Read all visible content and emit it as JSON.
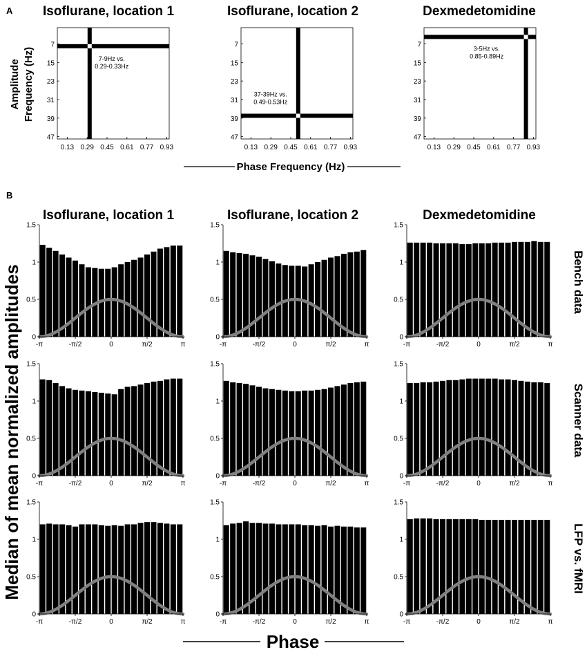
{
  "panel_a": {
    "letter": "A",
    "ylabel_line1": "Amplitude",
    "ylabel_line2": "Frequency (Hz)",
    "xlabel": "Phase Frequency (Hz)"
  },
  "panel_b": {
    "letter": "B",
    "ylabel": "Median of mean normalized amplitudes",
    "xlabel": "Phase",
    "row_labels": [
      "Bench data",
      "Scanner data",
      "LFP vs. fMRI"
    ]
  },
  "chart_data": [
    {
      "type": "heatmap",
      "title": "Isoflurane, location 1",
      "xticks": [
        "0.13",
        "0.29",
        "0.45",
        "0.61",
        "0.77",
        "0.93"
      ],
      "yticks": [
        "7",
        "15",
        "23",
        "31",
        "39",
        "47"
      ],
      "xlim": [
        0.05,
        0.95
      ],
      "ylim": [
        0,
        48
      ],
      "peak_phase_hz": 0.31,
      "peak_amp_hz": 8,
      "annotation_line1": "7-9Hz vs.",
      "annotation_line2": "0.29-0.33Hz"
    },
    {
      "type": "heatmap",
      "title": "Isoflurane, location 2",
      "xticks": [
        "0.13",
        "0.29",
        "0.45",
        "0.61",
        "0.77",
        "0.93"
      ],
      "yticks": [
        "7",
        "15",
        "23",
        "31",
        "39",
        "47"
      ],
      "xlim": [
        0.05,
        0.95
      ],
      "ylim": [
        0,
        48
      ],
      "peak_phase_hz": 0.51,
      "peak_amp_hz": 38,
      "annotation_line1": "37-39Hz vs.",
      "annotation_line2": "0.49-0.53Hz"
    },
    {
      "type": "heatmap",
      "title": "Dexmedetomidine",
      "xticks": [
        "0.13",
        "0.29",
        "0.45",
        "0.61",
        "0.77",
        "0.93"
      ],
      "yticks": [
        "7",
        "15",
        "23",
        "31",
        "39",
        "47"
      ],
      "xlim": [
        0.05,
        0.95
      ],
      "ylim": [
        0,
        48
      ],
      "peak_phase_hz": 0.87,
      "peak_amp_hz": 4,
      "annotation_line1": "3-5Hz vs.",
      "annotation_line2": "0.85-0.89Hz"
    },
    {
      "type": "bar",
      "title": "Isoflurane, location 1",
      "row": "Bench data",
      "ylim": [
        0,
        1.5
      ],
      "yticks": [
        "0",
        "0.5",
        "1",
        "1.5"
      ],
      "xticks": [
        "-π",
        "-π/2",
        "0",
        "π/2",
        "π"
      ],
      "values": [
        1.23,
        1.19,
        1.15,
        1.1,
        1.06,
        1.02,
        0.97,
        0.93,
        0.92,
        0.91,
        0.91,
        0.93,
        0.97,
        1.0,
        1.03,
        1.06,
        1.1,
        1.14,
        1.18,
        1.2,
        1.22,
        1.22
      ],
      "overlay_peak": 0.5
    },
    {
      "type": "bar",
      "title": "Isoflurane, location 2",
      "row": "Bench data",
      "ylim": [
        0,
        1.5
      ],
      "yticks": [
        "0",
        "0.5",
        "1",
        "1.5"
      ],
      "xticks": [
        "-π",
        "-π/2",
        "0",
        "π/2",
        "π"
      ],
      "values": [
        1.15,
        1.13,
        1.12,
        1.11,
        1.09,
        1.07,
        1.04,
        1.01,
        0.98,
        0.96,
        0.95,
        0.95,
        0.94,
        0.97,
        1.0,
        1.03,
        1.06,
        1.08,
        1.11,
        1.13,
        1.14,
        1.16
      ],
      "overlay_peak": 0.5
    },
    {
      "type": "bar",
      "title": "Dexmedetomidine",
      "row": "Bench data",
      "ylim": [
        0,
        1.5
      ],
      "yticks": [
        "0",
        "0.5",
        "1",
        "1.5"
      ],
      "xticks": [
        "-π",
        "-π/2",
        "0",
        "π/2",
        "π"
      ],
      "values": [
        1.26,
        1.26,
        1.26,
        1.26,
        1.25,
        1.25,
        1.25,
        1.25,
        1.24,
        1.24,
        1.25,
        1.25,
        1.25,
        1.26,
        1.26,
        1.26,
        1.27,
        1.27,
        1.27,
        1.28,
        1.27,
        1.27
      ],
      "overlay_peak": 0.5
    },
    {
      "type": "bar",
      "title": "Isoflurane, location 1",
      "row": "Scanner data",
      "ylim": [
        0,
        1.5
      ],
      "yticks": [
        "0",
        "0.5",
        "1",
        "1.5"
      ],
      "xticks": [
        "-π",
        "-π/2",
        "0",
        "π/2",
        "π"
      ],
      "values": [
        1.29,
        1.28,
        1.24,
        1.2,
        1.17,
        1.15,
        1.14,
        1.13,
        1.12,
        1.11,
        1.1,
        1.09,
        1.16,
        1.19,
        1.2,
        1.22,
        1.24,
        1.26,
        1.27,
        1.29,
        1.3,
        1.3
      ],
      "overlay_peak": 0.5
    },
    {
      "type": "bar",
      "title": "Isoflurane, location 2",
      "row": "Scanner data",
      "ylim": [
        0,
        1.5
      ],
      "yticks": [
        "0",
        "0.5",
        "1",
        "1.5"
      ],
      "xticks": [
        "-π",
        "-π/2",
        "0",
        "π/2",
        "π"
      ],
      "values": [
        1.27,
        1.25,
        1.24,
        1.23,
        1.21,
        1.19,
        1.17,
        1.16,
        1.15,
        1.14,
        1.13,
        1.13,
        1.14,
        1.14,
        1.15,
        1.16,
        1.18,
        1.2,
        1.22,
        1.24,
        1.25,
        1.26
      ],
      "overlay_peak": 0.5
    },
    {
      "type": "bar",
      "title": "Dexmedetomidine",
      "row": "Scanner data",
      "ylim": [
        0,
        1.5
      ],
      "yticks": [
        "0",
        "0.5",
        "1",
        "1.5"
      ],
      "xticks": [
        "-π",
        "-π/2",
        "0",
        "π/2",
        "π"
      ],
      "values": [
        1.24,
        1.24,
        1.25,
        1.25,
        1.26,
        1.27,
        1.28,
        1.28,
        1.29,
        1.3,
        1.3,
        1.3,
        1.3,
        1.3,
        1.29,
        1.29,
        1.28,
        1.27,
        1.26,
        1.25,
        1.25,
        1.24
      ],
      "overlay_peak": 0.5
    },
    {
      "type": "bar",
      "title": "Isoflurane, location 1",
      "row": "LFP vs. fMRI",
      "ylim": [
        0,
        1.5
      ],
      "yticks": [
        "0",
        "0.5",
        "1",
        "1.5"
      ],
      "xticks": [
        "-π",
        "-π/2",
        "0",
        "π/2",
        "π"
      ],
      "values": [
        1.2,
        1.21,
        1.2,
        1.2,
        1.19,
        1.17,
        1.2,
        1.2,
        1.2,
        1.19,
        1.18,
        1.19,
        1.18,
        1.2,
        1.2,
        1.22,
        1.23,
        1.23,
        1.22,
        1.21,
        1.2,
        1.2
      ],
      "overlay_peak": 0.5
    },
    {
      "type": "bar",
      "title": "Isoflurane, location 2",
      "row": "LFP vs. fMRI",
      "ylim": [
        0,
        1.5
      ],
      "yticks": [
        "0",
        "0.5",
        "1",
        "1.5"
      ],
      "xticks": [
        "-π",
        "-π/2",
        "0",
        "π/2",
        "π"
      ],
      "values": [
        1.19,
        1.21,
        1.22,
        1.24,
        1.22,
        1.22,
        1.21,
        1.21,
        1.2,
        1.2,
        1.2,
        1.2,
        1.19,
        1.19,
        1.18,
        1.19,
        1.17,
        1.18,
        1.17,
        1.17,
        1.16,
        1.16
      ],
      "overlay_peak": 0.5
    },
    {
      "type": "bar",
      "title": "Dexmedetomidine",
      "row": "LFP vs. fMRI",
      "ylim": [
        0,
        1.5
      ],
      "yticks": [
        "0",
        "0.5",
        "1",
        "1.5"
      ],
      "xticks": [
        "-π",
        "-π/2",
        "0",
        "π/2",
        "π"
      ],
      "values": [
        1.27,
        1.28,
        1.28,
        1.28,
        1.27,
        1.27,
        1.27,
        1.27,
        1.27,
        1.27,
        1.27,
        1.26,
        1.26,
        1.26,
        1.26,
        1.26,
        1.26,
        1.26,
        1.26,
        1.26,
        1.26,
        1.26
      ],
      "overlay_peak": 0.5
    }
  ]
}
